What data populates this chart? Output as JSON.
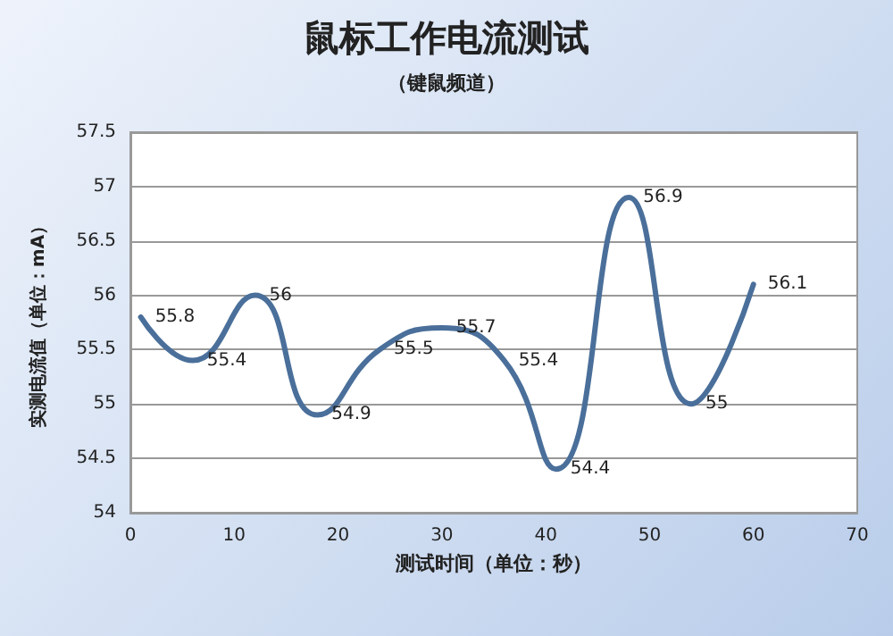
{
  "chart_data": {
    "type": "line",
    "title": "鼠标工作电流测试",
    "subtitle": "（键鼠频道）",
    "xlabel": "测试时间（单位：秒）",
    "ylabel": "实测电流值（单位：mA）",
    "x": [
      1,
      6,
      12,
      18,
      24,
      30,
      36,
      41,
      48,
      54,
      60
    ],
    "series": [
      {
        "color": "#4a6f9a",
        "values": [
          55.8,
          55.4,
          56,
          54.9,
          55.5,
          55.7,
          55.4,
          54.4,
          56.9,
          55,
          56.1
        ]
      }
    ],
    "xlim": [
      0,
      70
    ],
    "xticks": [
      0,
      10,
      20,
      30,
      40,
      50,
      60,
      70
    ],
    "ylim": [
      54,
      57.5
    ],
    "yticks": [
      54,
      54.5,
      55,
      55.5,
      56,
      56.5,
      57,
      57.5
    ],
    "grid": "y",
    "marker": "none",
    "line_style": "solid",
    "data_labels": true
  }
}
